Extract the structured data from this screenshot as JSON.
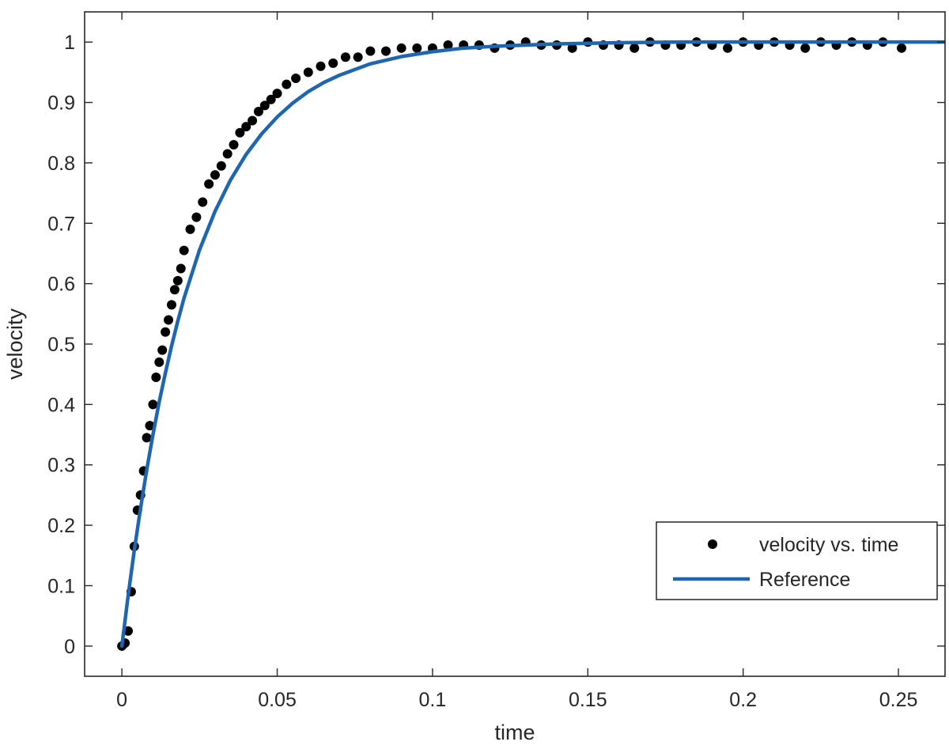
{
  "chart_data": {
    "type": "scatter",
    "title": "",
    "xlabel": "time",
    "ylabel": "velocity",
    "xlim": [
      -0.012,
      0.265
    ],
    "ylim": [
      -0.05,
      1.05
    ],
    "xticks": [
      0,
      0.05,
      0.1,
      0.15,
      0.2,
      0.25
    ],
    "xtick_labels": [
      "0",
      "0.05",
      "0.1",
      "0.15",
      "0.2",
      "0.25"
    ],
    "yticks": [
      0,
      0.1,
      0.2,
      0.3,
      0.4,
      0.5,
      0.6,
      0.7,
      0.8,
      0.9,
      1
    ],
    "ytick_labels": [
      "0",
      "0.1",
      "0.2",
      "0.3",
      "0.4",
      "0.5",
      "0.6",
      "0.7",
      "0.8",
      "0.9",
      "1"
    ],
    "grid": false,
    "legend_position": "bottom-right",
    "colors": {
      "points": "#000000",
      "reference": "#1f66b0",
      "axes": "#262626"
    },
    "series": [
      {
        "name": "velocity vs. time",
        "kind": "points",
        "x": [
          0.0,
          0.001,
          0.002,
          0.003,
          0.004,
          0.005,
          0.006,
          0.007,
          0.008,
          0.009,
          0.01,
          0.011,
          0.012,
          0.013,
          0.014,
          0.015,
          0.016,
          0.017,
          0.018,
          0.019,
          0.02,
          0.022,
          0.024,
          0.026,
          0.028,
          0.03,
          0.032,
          0.034,
          0.036,
          0.038,
          0.04,
          0.042,
          0.044,
          0.046,
          0.048,
          0.05,
          0.053,
          0.056,
          0.06,
          0.064,
          0.068,
          0.072,
          0.076,
          0.08,
          0.085,
          0.09,
          0.095,
          0.1,
          0.105,
          0.11,
          0.115,
          0.12,
          0.125,
          0.13,
          0.135,
          0.14,
          0.145,
          0.15,
          0.155,
          0.16,
          0.165,
          0.17,
          0.175,
          0.18,
          0.185,
          0.19,
          0.195,
          0.2,
          0.205,
          0.21,
          0.215,
          0.22,
          0.225,
          0.23,
          0.235,
          0.24,
          0.245,
          0.251
        ],
        "y": [
          0.0,
          0.005,
          0.025,
          0.09,
          0.165,
          0.225,
          0.25,
          0.29,
          0.345,
          0.365,
          0.4,
          0.445,
          0.47,
          0.49,
          0.52,
          0.54,
          0.565,
          0.59,
          0.605,
          0.625,
          0.655,
          0.69,
          0.71,
          0.735,
          0.765,
          0.78,
          0.795,
          0.815,
          0.83,
          0.85,
          0.86,
          0.87,
          0.885,
          0.895,
          0.905,
          0.915,
          0.93,
          0.94,
          0.95,
          0.96,
          0.965,
          0.975,
          0.975,
          0.985,
          0.985,
          0.99,
          0.99,
          0.99,
          0.995,
          0.995,
          0.995,
          0.99,
          0.995,
          1.0,
          0.995,
          0.995,
          0.99,
          1.0,
          0.995,
          0.995,
          0.99,
          1.0,
          0.995,
          0.995,
          1.0,
          0.995,
          0.99,
          1.0,
          0.995,
          1.0,
          0.995,
          0.99,
          1.0,
          0.995,
          1.0,
          0.995,
          1.0,
          0.99
        ]
      },
      {
        "name": "Reference",
        "kind": "line",
        "x": [
          0.0,
          0.002,
          0.004,
          0.006,
          0.008,
          0.01,
          0.012,
          0.014,
          0.016,
          0.018,
          0.02,
          0.025,
          0.03,
          0.035,
          0.04,
          0.045,
          0.05,
          0.055,
          0.06,
          0.065,
          0.07,
          0.08,
          0.09,
          0.1,
          0.11,
          0.12,
          0.14,
          0.16,
          0.18,
          0.2,
          0.22,
          0.24,
          0.265
        ],
        "y": [
          0.0,
          0.083,
          0.159,
          0.228,
          0.292,
          0.35,
          0.404,
          0.452,
          0.497,
          0.538,
          0.576,
          0.656,
          0.72,
          0.772,
          0.814,
          0.848,
          0.876,
          0.899,
          0.918,
          0.933,
          0.945,
          0.964,
          0.976,
          0.984,
          0.99,
          0.993,
          0.997,
          0.999,
          1.0,
          1.0,
          1.0,
          1.0,
          1.0
        ]
      }
    ]
  }
}
